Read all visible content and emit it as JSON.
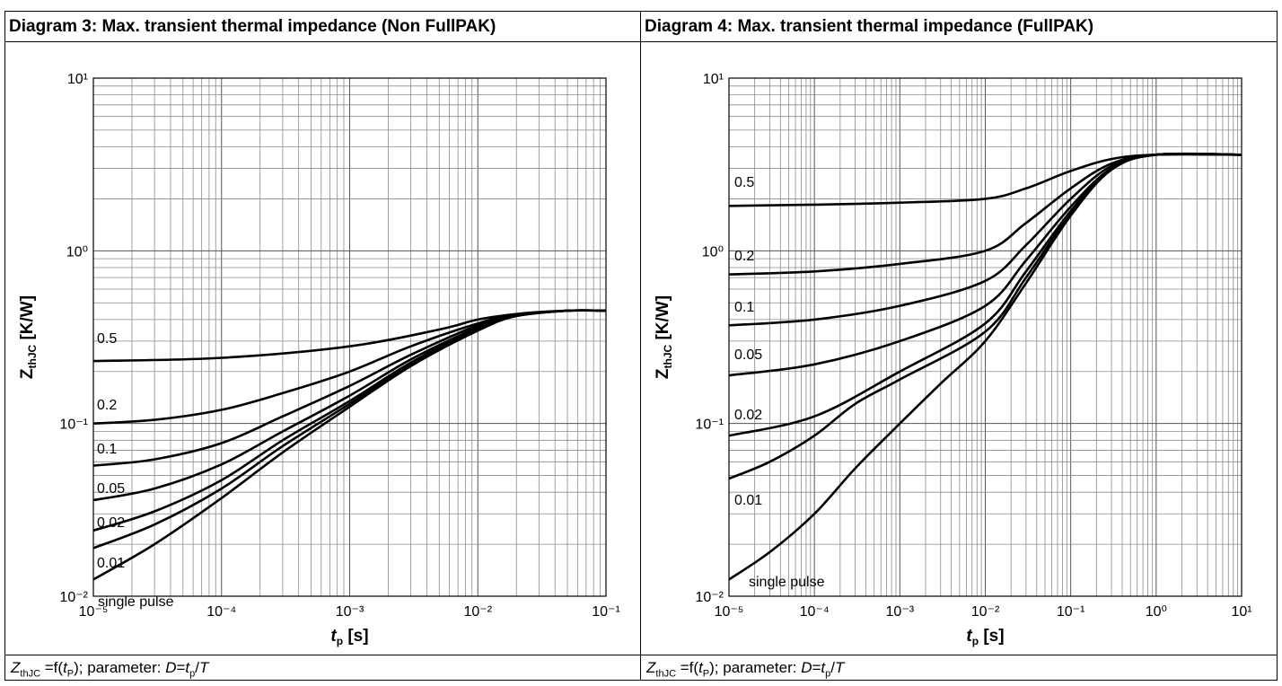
{
  "chart_data": [
    {
      "type": "line",
      "title": "Diagram 3: Max. transient thermal impedance (Non FullPAK)",
      "ylabel_main": "Z",
      "ylabel_sub": "thJC",
      "ylabel_unit": "[K/W]",
      "xlabel_main": "t",
      "xlabel_sub": "p",
      "xlabel_unit": "[s]",
      "xscale": "log",
      "yscale": "log",
      "xlim": [
        1e-05,
        0.1
      ],
      "ylim": [
        0.01,
        10
      ],
      "grid": true,
      "x_tick_exponents": [
        -5,
        -4,
        -3,
        -2,
        -1
      ],
      "y_tick_exponents": [
        -2,
        -1,
        0,
        1
      ],
      "caption": {
        "z": "Z",
        "zsub": "thJC",
        "mid": " =f(",
        "t": "t",
        "tsub": "P",
        "rest": "); parameter: ",
        "d": "D",
        "eq": "=",
        "t2": "t",
        "t2sub": "p",
        "slash": "/",
        "T": "T"
      },
      "series": [
        {
          "name": "0.5",
          "x": [
            1e-05,
            0.0001,
            0.001,
            0.005,
            0.01,
            0.02,
            0.05,
            0.1
          ],
          "y": [
            0.23,
            0.24,
            0.28,
            0.35,
            0.4,
            0.43,
            0.45,
            0.45
          ]
        },
        {
          "name": "0.2",
          "x": [
            1e-05,
            3e-05,
            0.0001,
            0.0003,
            0.001,
            0.003,
            0.01,
            0.02,
            0.05,
            0.1
          ],
          "y": [
            0.1,
            0.105,
            0.12,
            0.15,
            0.2,
            0.28,
            0.38,
            0.43,
            0.45,
            0.45
          ]
        },
        {
          "name": "0.1",
          "x": [
            1e-05,
            3e-05,
            0.0001,
            0.0003,
            0.001,
            0.003,
            0.01,
            0.02,
            0.05,
            0.1
          ],
          "y": [
            0.057,
            0.062,
            0.077,
            0.11,
            0.165,
            0.25,
            0.37,
            0.42,
            0.45,
            0.45
          ]
        },
        {
          "name": "0.05",
          "x": [
            1e-05,
            3e-05,
            0.0001,
            0.0003,
            0.001,
            0.003,
            0.01,
            0.02,
            0.05,
            0.1
          ],
          "y": [
            0.036,
            0.042,
            0.058,
            0.09,
            0.145,
            0.235,
            0.36,
            0.42,
            0.45,
            0.45
          ]
        },
        {
          "name": "0.02",
          "x": [
            1e-05,
            3e-05,
            0.0001,
            0.0003,
            0.001,
            0.003,
            0.01,
            0.02,
            0.05,
            0.1
          ],
          "y": [
            0.024,
            0.031,
            0.047,
            0.08,
            0.135,
            0.225,
            0.355,
            0.42,
            0.45,
            0.45
          ]
        },
        {
          "name": "0.01",
          "x": [
            1e-05,
            3e-05,
            0.0001,
            0.0003,
            0.001,
            0.003,
            0.01,
            0.02,
            0.05,
            0.1
          ],
          "y": [
            0.019,
            0.026,
            0.042,
            0.074,
            0.13,
            0.22,
            0.35,
            0.42,
            0.45,
            0.45
          ]
        },
        {
          "name": "single pulse",
          "x": [
            1e-05,
            3e-05,
            0.0001,
            0.0003,
            0.001,
            0.003,
            0.01,
            0.02,
            0.05,
            0.1
          ],
          "y": [
            0.0125,
            0.02,
            0.037,
            0.068,
            0.125,
            0.215,
            0.345,
            0.42,
            0.45,
            0.45
          ]
        }
      ]
    },
    {
      "type": "line",
      "title": "Diagram 4: Max. transient thermal impedance (FullPAK)",
      "ylabel_main": "Z",
      "ylabel_sub": "thJC",
      "ylabel_unit": "[K/W]",
      "xlabel_main": "t",
      "xlabel_sub": "p",
      "xlabel_unit": "[s]",
      "xscale": "log",
      "yscale": "log",
      "xlim": [
        1e-05,
        10
      ],
      "ylim": [
        0.01,
        10
      ],
      "grid": true,
      "x_tick_exponents": [
        -5,
        -4,
        -3,
        -2,
        -1,
        0,
        1
      ],
      "y_tick_exponents": [
        -2,
        -1,
        0,
        1
      ],
      "caption": {
        "z": "Z",
        "zsub": "thJC",
        "mid": " =f(",
        "t": "t",
        "tsub": "P",
        "rest": "); parameter: ",
        "d": "D",
        "eq": "=",
        "t2": "t",
        "t2sub": "p",
        "slash": "/",
        "T": "T"
      },
      "series": [
        {
          "name": "0.5",
          "x": [
            1e-05,
            0.0001,
            0.001,
            0.01,
            0.03,
            0.1,
            0.3,
            1,
            10
          ],
          "y": [
            1.82,
            1.85,
            1.9,
            2.0,
            2.3,
            2.9,
            3.4,
            3.6,
            3.6
          ]
        },
        {
          "name": "0.2",
          "x": [
            1e-05,
            0.0001,
            0.001,
            0.01,
            0.03,
            0.1,
            0.3,
            1,
            10
          ],
          "y": [
            0.73,
            0.76,
            0.84,
            1.0,
            1.45,
            2.3,
            3.2,
            3.6,
            3.6
          ]
        },
        {
          "name": "0.1",
          "x": [
            1e-05,
            0.0001,
            0.001,
            0.01,
            0.03,
            0.1,
            0.3,
            1,
            10
          ],
          "y": [
            0.37,
            0.4,
            0.48,
            0.67,
            1.08,
            2.0,
            3.1,
            3.6,
            3.6
          ]
        },
        {
          "name": "0.05",
          "x": [
            1e-05,
            0.0001,
            0.001,
            0.01,
            0.03,
            0.1,
            0.3,
            1,
            10
          ],
          "y": [
            0.19,
            0.22,
            0.3,
            0.48,
            0.88,
            1.8,
            3.0,
            3.6,
            3.6
          ]
        },
        {
          "name": "0.02",
          "x": [
            1e-05,
            0.0001,
            0.001,
            0.01,
            0.03,
            0.1,
            0.3,
            1,
            10
          ],
          "y": [
            0.085,
            0.11,
            0.2,
            0.38,
            0.76,
            1.7,
            3.0,
            3.6,
            3.6
          ]
        },
        {
          "name": "0.01",
          "x": [
            1e-05,
            3e-05,
            0.0001,
            0.0003,
            0.001,
            0.01,
            0.03,
            0.1,
            0.3,
            1,
            10
          ],
          "y": [
            0.048,
            0.06,
            0.085,
            0.13,
            0.18,
            0.34,
            0.7,
            1.65,
            3.0,
            3.6,
            3.6
          ]
        },
        {
          "name": "single pulse",
          "x": [
            1e-05,
            3e-05,
            0.0001,
            0.0003,
            0.001,
            0.003,
            0.01,
            0.03,
            0.1,
            0.3,
            1,
            10
          ],
          "y": [
            0.0125,
            0.018,
            0.03,
            0.055,
            0.1,
            0.17,
            0.3,
            0.65,
            1.6,
            2.95,
            3.6,
            3.6
          ]
        }
      ]
    }
  ]
}
